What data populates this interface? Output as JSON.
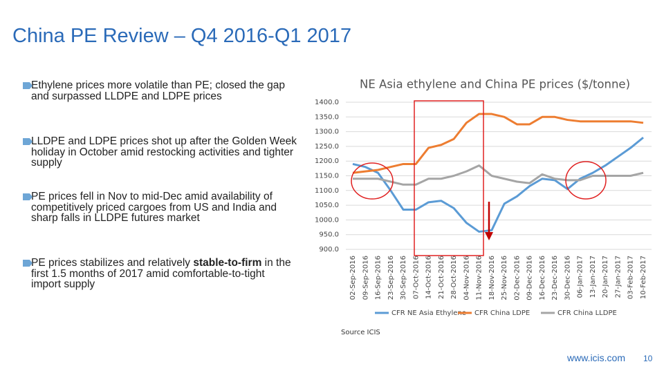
{
  "slide": {
    "title": "China PE Review – Q4 2016-Q1 2017",
    "bullets": [
      {
        "text": "Ethylene prices more volatile than PE; closed the gap and surpassed LLDPE and LDPE prices"
      },
      {
        "text": "LLDPE and LDPE prices shot up after the Golden Week holiday in October amid restocking activities and tighter supply"
      },
      {
        "text": "PE prices fell in Nov to mid-Dec amid availability of competitively priced cargoes from US and India and sharp falls in LLDPE futures market"
      },
      {
        "text": "PE prices stabilizes and relatively ",
        "bold": "stable-to-firm",
        "rest": " in the first 1.5 months of 2017 amid comfortable-to-tight import supply"
      }
    ],
    "footer_url": "www.icis.com",
    "page_number": "10"
  },
  "chart_data": {
    "type": "line",
    "title": "NE Asia ethylene and China PE prices ($/tonne)",
    "source": "Source ICIS",
    "categories": [
      "02-Sep-2016",
      "09-Sep-2016",
      "16-Sep-2016",
      "23-Sep-2016",
      "30-Sep-2016",
      "07-Oct-2016",
      "14-Oct-2016",
      "21-Oct-2016",
      "28-Oct-2016",
      "04-Nov-2016",
      "11-Nov-2016",
      "18-Nov-2016",
      "25-Nov-2016",
      "02-Dec-2016",
      "09-Dec-2016",
      "16-Dec-2016",
      "23-Dec-2016",
      "30-Dec-2016",
      "06-Jan-2017",
      "13-Jan-2017",
      "20-Jan-2017",
      "27-Jan-2017",
      "03-Feb-2017",
      "10-Feb-2017"
    ],
    "series": [
      {
        "name": "CFR NE Asia Ethylene",
        "color": "#5b9bd5",
        "values": [
          1190,
          1180,
          1160,
          1100,
          1035,
          1035,
          1060,
          1065,
          1040,
          990,
          960,
          965,
          1055,
          1080,
          1115,
          1140,
          1135,
          1105,
          1140,
          1160,
          1185,
          1215,
          1245,
          1280
        ]
      },
      {
        "name": "CFR China LDPE",
        "color": "#ed7d31",
        "values": [
          1160,
          1165,
          1170,
          1180,
          1190,
          1190,
          1245,
          1255,
          1275,
          1330,
          1360,
          1360,
          1350,
          1325,
          1325,
          1350,
          1350,
          1340,
          1335,
          1335,
          1335,
          1335,
          1335,
          1330
        ]
      },
      {
        "name": "CFR China LLDPE",
        "color": "#a5a5a5",
        "values": [
          1140,
          1140,
          1140,
          1130,
          1120,
          1120,
          1140,
          1140,
          1150,
          1165,
          1185,
          1150,
          1140,
          1130,
          1125,
          1155,
          1140,
          1135,
          1135,
          1150,
          1150,
          1150,
          1150,
          1160
        ]
      }
    ],
    "ylim": [
      900,
      1400
    ],
    "yticks": [
      {
        "value": 900,
        "label": "900.0"
      },
      {
        "value": 950,
        "label": "950.0"
      },
      {
        "value": 1000,
        "label": "1000.0"
      },
      {
        "value": 1050,
        "label": "1050.0"
      },
      {
        "value": 1100,
        "label": "1100.0"
      },
      {
        "value": 1150,
        "label": "1150.0"
      },
      {
        "value": 1200,
        "label": "1200.0"
      },
      {
        "value": 1250,
        "label": "1250.0"
      },
      {
        "value": 1300,
        "label": "1300.0"
      },
      {
        "value": 1350,
        "label": "1350.0"
      },
      {
        "value": 1400,
        "label": "1400.0"
      }
    ],
    "grid": true
  }
}
